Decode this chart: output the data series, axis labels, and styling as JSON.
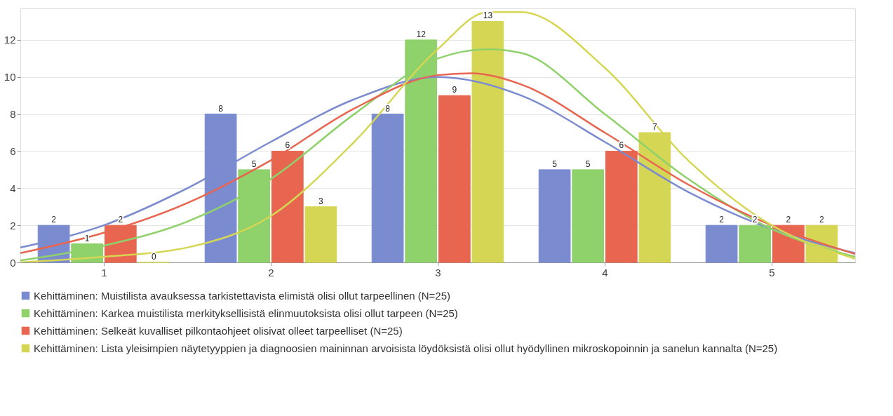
{
  "chart_data": {
    "type": "bar",
    "x": [
      1,
      2,
      3,
      4,
      5
    ],
    "xlim": [
      0.5,
      5.5
    ],
    "xticks": [
      1,
      2,
      3,
      4,
      5
    ],
    "ylim": [
      0,
      13.7
    ],
    "yticks": [
      0,
      2,
      4,
      6,
      8,
      10,
      12
    ],
    "grid": "y",
    "legend": "bottom",
    "series": [
      {
        "name": "Kehittäminen: Muistilista avauksessa tarkistettavista elimistä olisi ollut tarpeellinen (N=25)",
        "color": "#7b8bd0",
        "values": [
          2,
          8,
          8,
          5,
          2
        ],
        "value_labels": [
          "2",
          "8",
          "8",
          "5",
          "2"
        ]
      },
      {
        "name": "Kehittäminen: Karkea muistilista merkityksellisistä elinmuutoksista olisi ollut tarpeen (N=25)",
        "color": "#8fd16a",
        "values": [
          1,
          5,
          12,
          5,
          2
        ],
        "value_labels": [
          "1",
          "5",
          "12",
          "5",
          "2"
        ]
      },
      {
        "name": "Kehittäminen: Selkeät kuvalliset pilkontaohjeet olisivat olleet tarpeelliset (N=25)",
        "color": "#e8664f",
        "values": [
          2,
          6,
          9,
          6,
          2
        ],
        "value_labels": [
          "2",
          "6",
          "9",
          "6",
          "2"
        ]
      },
      {
        "name": "Kehittäminen: Lista yleisimpien näytetyyppien ja diagnoosien maininnan arvoisista löydöksistä olisi ollut hyödyllinen mikroskopoinnin ja sanelun kannalta (N=25)",
        "color": "#d6d655",
        "values": [
          0,
          3,
          13,
          7,
          2
        ],
        "value_labels": [
          "0",
          "3",
          "13",
          "7",
          "2"
        ]
      },
      {
        "type": "line",
        "color": "#7b8bd0",
        "x": [
          0.5,
          1,
          1.5,
          2,
          2.5,
          3,
          3.5,
          4,
          4.5,
          5,
          5.5
        ],
        "values": [
          0.8,
          2.0,
          4.0,
          6.5,
          8.8,
          10.0,
          9.0,
          6.5,
          3.8,
          1.8,
          0.5
        ]
      },
      {
        "type": "line",
        "color": "#8fd16a",
        "x": [
          0.5,
          1,
          1.5,
          2,
          2.5,
          3,
          3.3,
          3.5,
          4,
          4.5,
          5,
          5.5
        ],
        "values": [
          0.1,
          0.9,
          2.2,
          4.5,
          8.0,
          11.0,
          11.5,
          11.3,
          8.0,
          4.5,
          1.8,
          0.3
        ]
      },
      {
        "type": "line",
        "color": "#e8664f",
        "x": [
          0.5,
          1,
          1.5,
          2,
          2.5,
          3,
          3.2,
          3.5,
          4,
          4.5,
          5,
          5.5
        ],
        "values": [
          0.5,
          1.6,
          3.2,
          5.5,
          8.3,
          10.1,
          10.2,
          9.6,
          7.0,
          4.2,
          2.0,
          0.45
        ]
      },
      {
        "type": "line",
        "color": "#d6d655",
        "x": [
          0.5,
          1,
          1.5,
          2,
          2.5,
          3,
          3.3,
          3.5,
          4,
          4.5,
          5,
          5.5
        ],
        "values": [
          0,
          0.3,
          0.8,
          2.5,
          6.5,
          11.5,
          13.5,
          13.5,
          10.5,
          5.5,
          2.0,
          0.2
        ]
      }
    ]
  }
}
